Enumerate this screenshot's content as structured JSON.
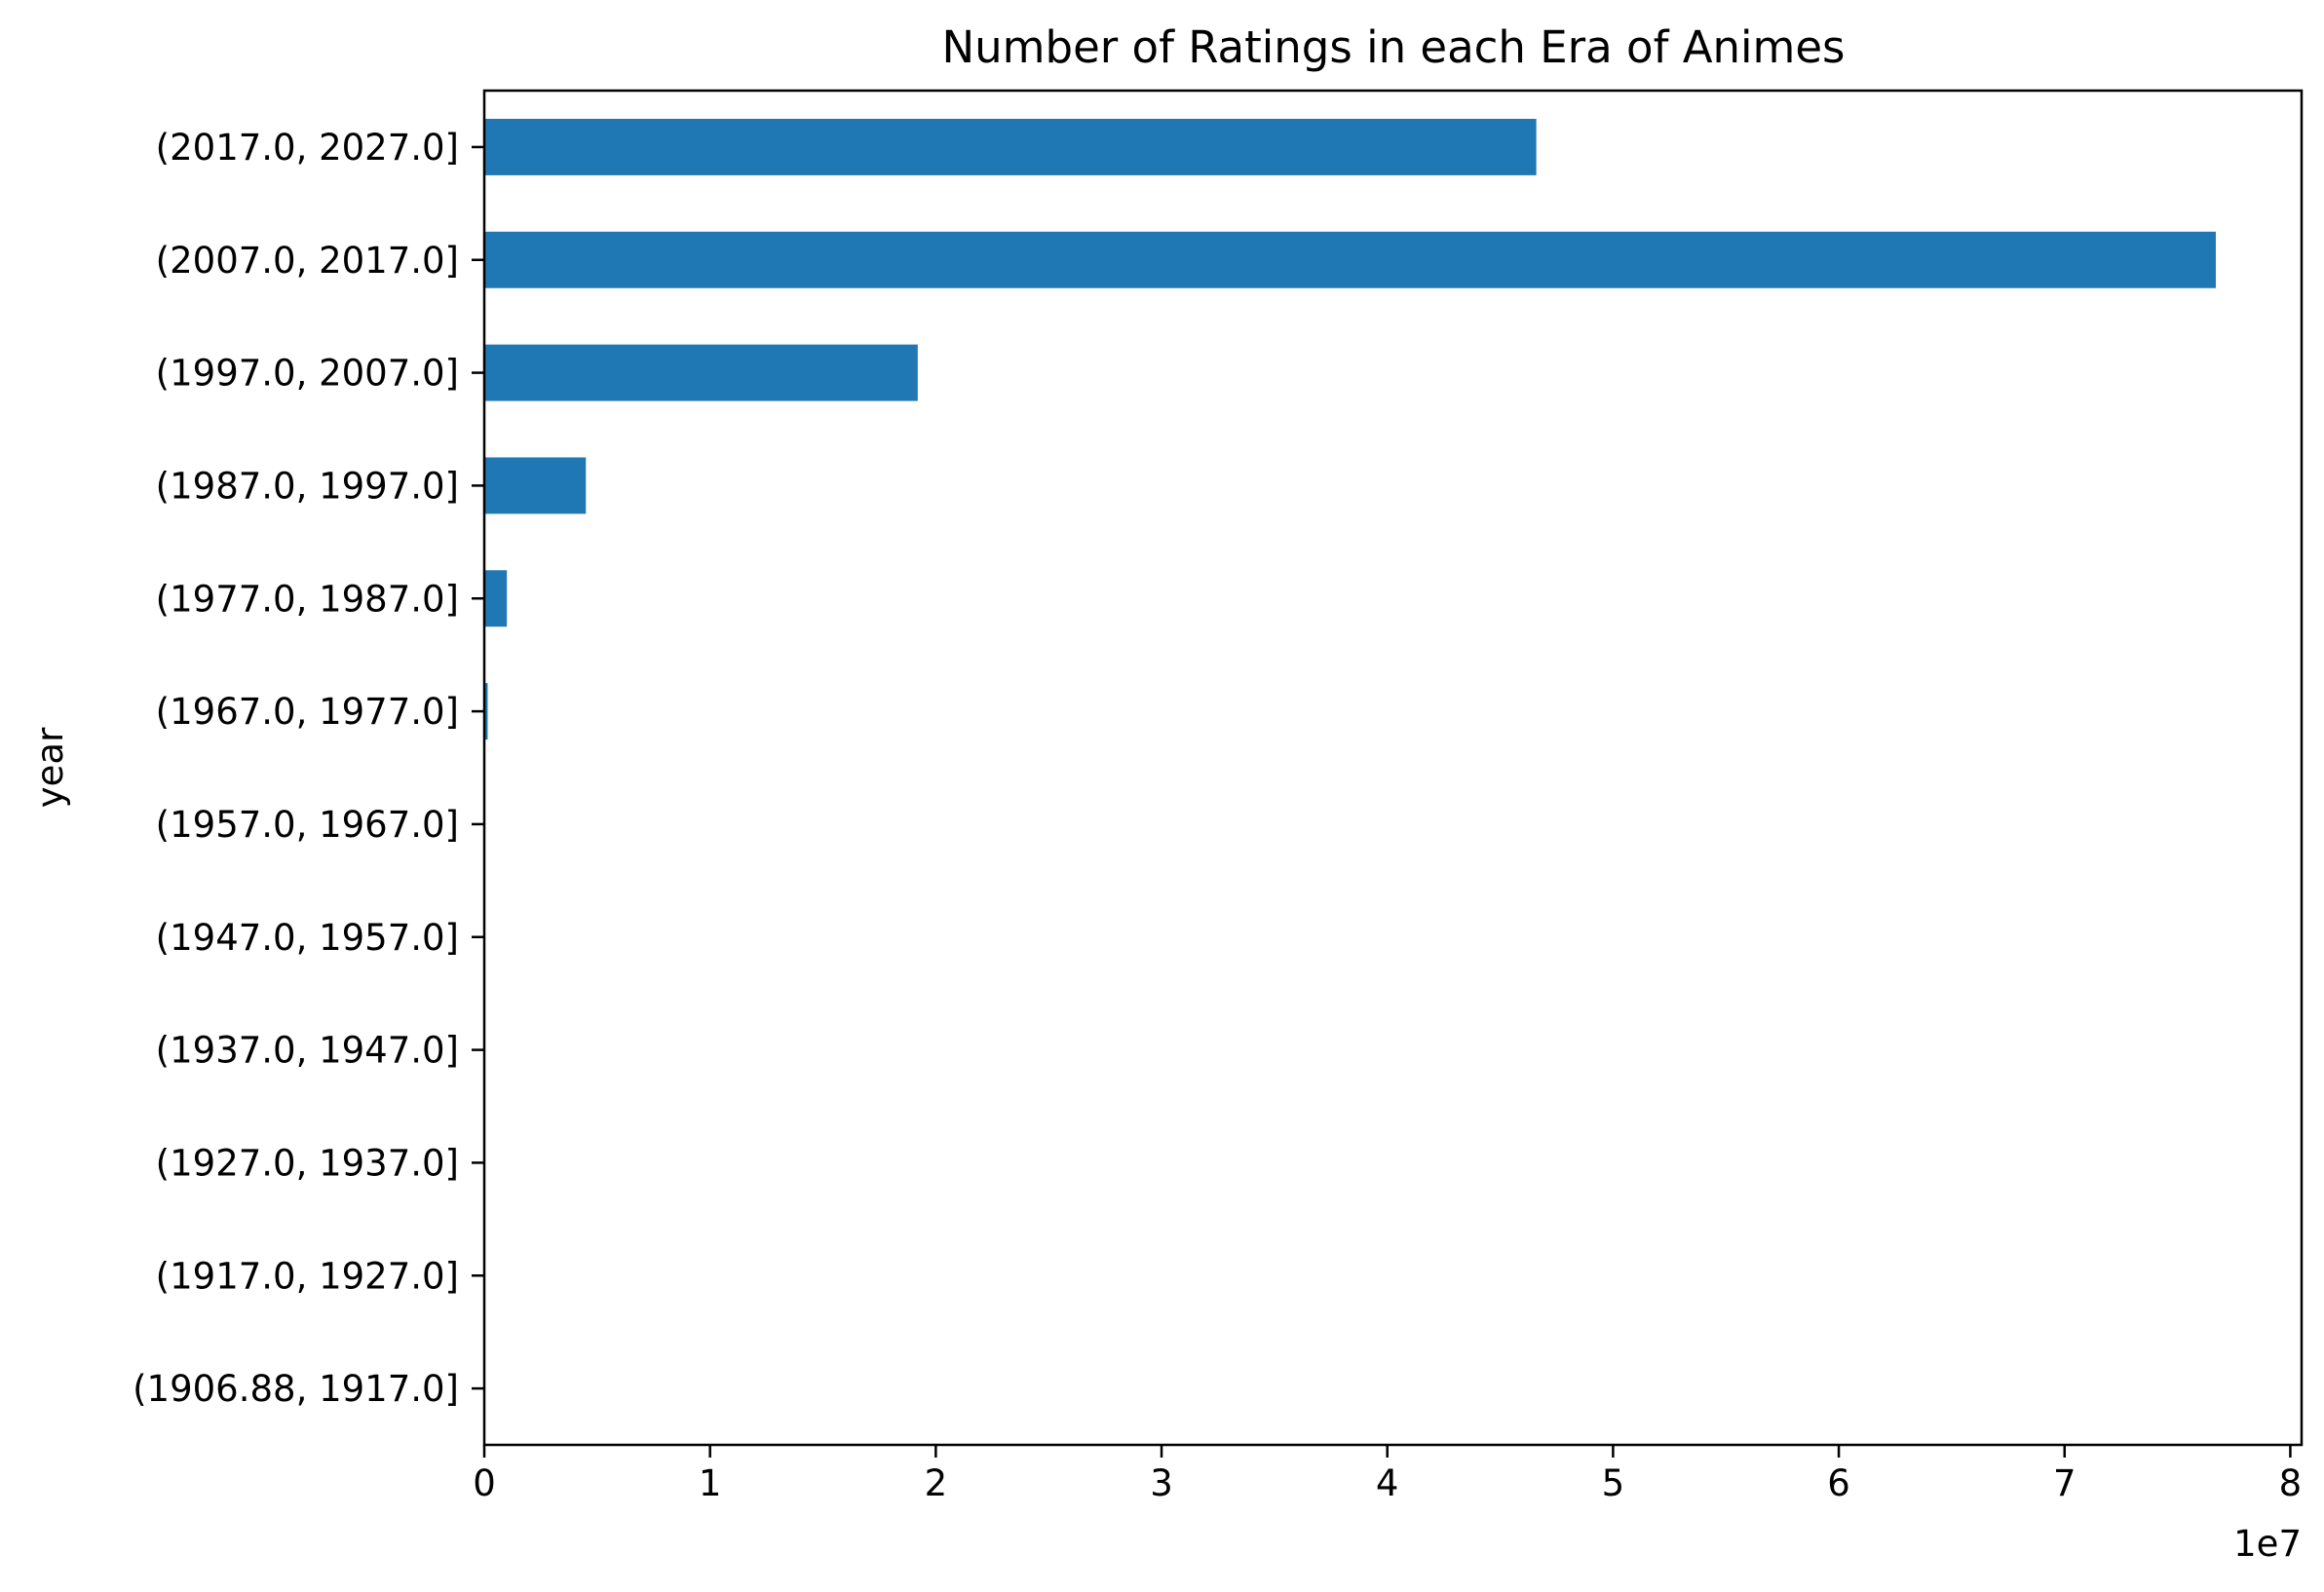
{
  "chart_data": {
    "type": "bar",
    "orientation": "horizontal",
    "title": "Number of Ratings in each Era of Animes",
    "xlabel": "",
    "ylabel": "year",
    "x_offset_label": "1e7",
    "x_scale_factor": 10000000,
    "xlim": [
      0,
      8.05
    ],
    "xticks": [
      0,
      1,
      2,
      3,
      4,
      5,
      6,
      7,
      8
    ],
    "xtick_labels": [
      "0",
      "1",
      "2",
      "3",
      "4",
      "5",
      "6",
      "7",
      "8"
    ],
    "categories": [
      "(1906.88, 1917.0]",
      "(1917.0, 1927.0]",
      "(1927.0, 1937.0]",
      "(1937.0, 1947.0]",
      "(1947.0, 1957.0]",
      "(1957.0, 1967.0]",
      "(1967.0, 1977.0]",
      "(1977.0, 1987.0]",
      "(1987.0, 1997.0]",
      "(1997.0, 2007.0]",
      "(2007.0, 2017.0]",
      "(2017.0, 2027.0]"
    ],
    "values": [
      0,
      0,
      0,
      0,
      0,
      0,
      0.015,
      0.1,
      0.45,
      1.92,
      7.67,
      4.66
    ],
    "bar_color": "#1f77b4",
    "grid": false,
    "legend": "none"
  }
}
